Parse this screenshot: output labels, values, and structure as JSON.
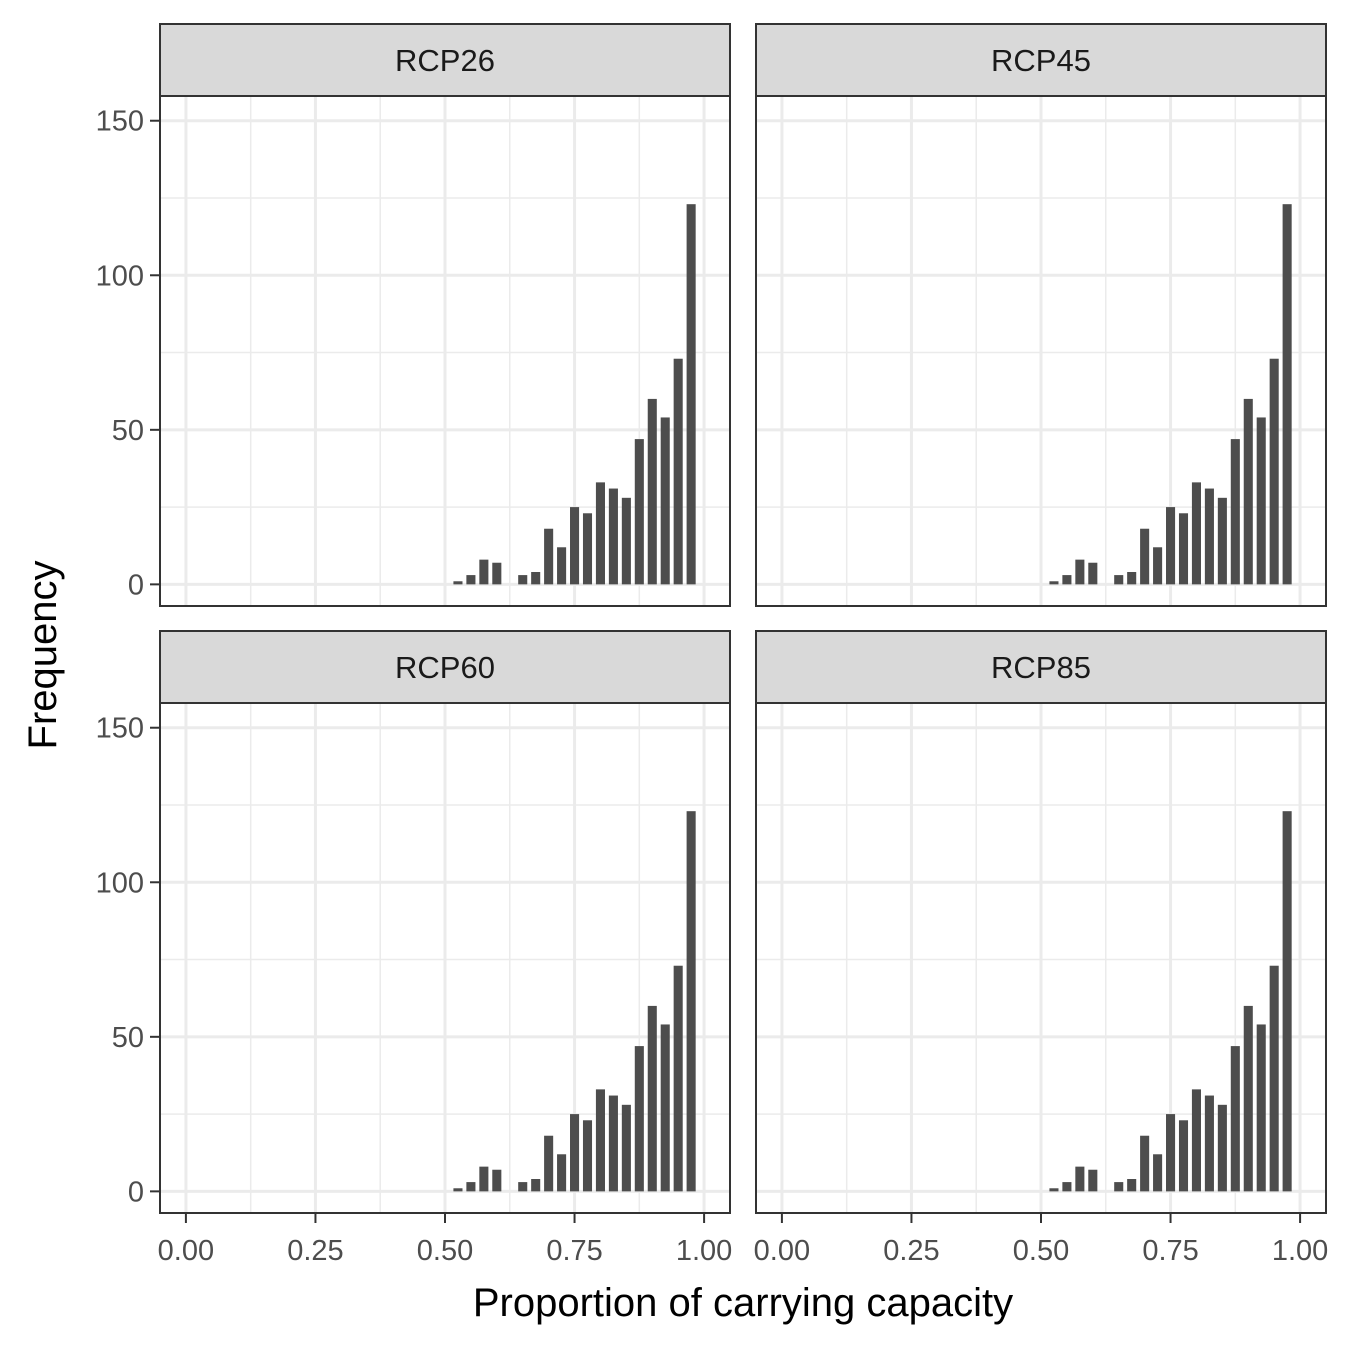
{
  "chart_data": {
    "type": "bar",
    "xlabel": "Proportion of carrying capacity",
    "ylabel": "Frequency",
    "xlim": [
      -0.05,
      1.05
    ],
    "ylim": [
      -7,
      158
    ],
    "x_ticks": [
      {
        "value": 0.0,
        "label": "0.00"
      },
      {
        "value": 0.25,
        "label": "0.25"
      },
      {
        "value": 0.5,
        "label": "0.50"
      },
      {
        "value": 0.75,
        "label": "0.75"
      },
      {
        "value": 1.0,
        "label": "1.00"
      }
    ],
    "y_ticks": [
      {
        "value": 0,
        "label": "0"
      },
      {
        "value": 50,
        "label": "50"
      },
      {
        "value": 100,
        "label": "100"
      },
      {
        "value": 150,
        "label": "150"
      }
    ],
    "grid": true,
    "bar_color": "#4d4d4d",
    "bin_width": 0.025,
    "bar_width": 0.0175,
    "bins": [
      0.525,
      0.55,
      0.575,
      0.6,
      0.625,
      0.65,
      0.675,
      0.7,
      0.725,
      0.75,
      0.775,
      0.8,
      0.825,
      0.85,
      0.875,
      0.9,
      0.925,
      0.95,
      0.975
    ],
    "panels": [
      {
        "name": "RCP26",
        "values": [
          1,
          3,
          8,
          7,
          0,
          3,
          4,
          18,
          12,
          25,
          23,
          33,
          31,
          28,
          47,
          60,
          54,
          73,
          123
        ]
      },
      {
        "name": "RCP45",
        "values": [
          1,
          3,
          8,
          7,
          0,
          3,
          4,
          18,
          12,
          25,
          23,
          33,
          31,
          28,
          47,
          60,
          54,
          73,
          123
        ]
      },
      {
        "name": "RCP60",
        "values": [
          1,
          3,
          8,
          7,
          0,
          3,
          4,
          18,
          12,
          25,
          23,
          33,
          31,
          28,
          47,
          60,
          54,
          73,
          123
        ]
      },
      {
        "name": "RCP85",
        "values": [
          1,
          3,
          8,
          7,
          0,
          3,
          4,
          18,
          12,
          25,
          23,
          33,
          31,
          28,
          47,
          60,
          54,
          73,
          123
        ]
      }
    ]
  }
}
